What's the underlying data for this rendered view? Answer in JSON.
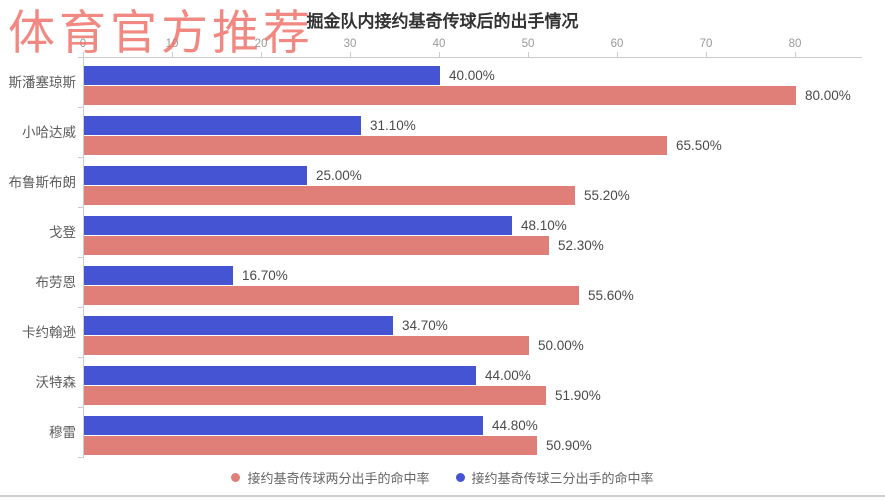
{
  "watermark": {
    "text": "体育官方推荐",
    "color": "#ee6f67"
  },
  "title": "掘金队内接约基奇传球后的出手情况",
  "chart_data": {
    "type": "bar",
    "orientation": "horizontal",
    "title": "掘金队内接约基奇传球后的出手情况",
    "categories": [
      "斯潘塞琼斯",
      "小哈达威",
      "布鲁斯布朗",
      "戈登",
      "布劳恩",
      "卡约翰逊",
      "沃特森",
      "穆雷"
    ],
    "series": [
      {
        "name": "接约基奇传球两分出手的命中率",
        "color": "#E07F78",
        "values": [
          80.0,
          65.5,
          55.2,
          52.3,
          55.6,
          50.0,
          51.9,
          50.9
        ],
        "labels": [
          "80.00%",
          "65.50%",
          "55.20%",
          "52.30%",
          "55.60%",
          "50.00%",
          "51.90%",
          "50.90%"
        ]
      },
      {
        "name": "接约基奇传球三分出手的命中率",
        "color": "#4454D2",
        "values": [
          40.0,
          31.1,
          25.0,
          48.1,
          16.7,
          34.7,
          44.0,
          44.8
        ],
        "labels": [
          "40.00%",
          "31.10%",
          "25.00%",
          "48.10%",
          "16.70%",
          "34.70%",
          "44.00%",
          "44.80%"
        ]
      }
    ],
    "x_axis": {
      "min": 0,
      "max": 80,
      "ticks": [
        "0",
        "10",
        "20",
        "30",
        "40",
        "50",
        "60",
        "70",
        "80"
      ],
      "position": "top"
    },
    "legend_position": "bottom",
    "grid": false,
    "note_display_order": "blue three-point bar above red two-point bar in each category group"
  }
}
